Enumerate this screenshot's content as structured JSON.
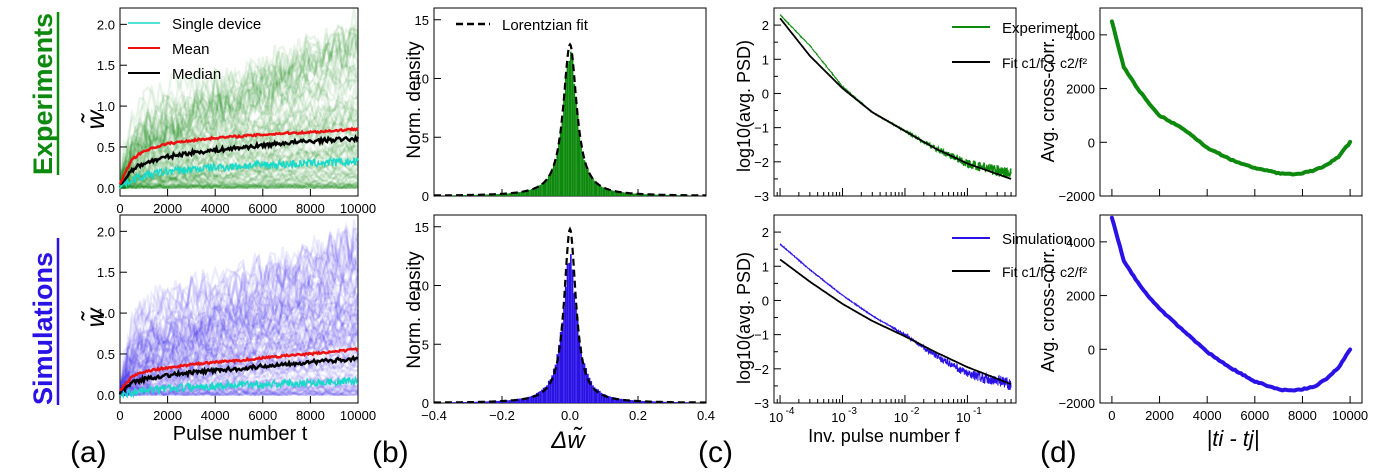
{
  "row_labels": {
    "experiments": "Experiments",
    "simulations": "Simulations"
  },
  "panel_labels": [
    "(a)",
    "(b)",
    "(c)",
    "(d)"
  ],
  "colors": {
    "exp": "#0d8a0d",
    "sim": "#2a12e6",
    "cyan": "#19d9c9",
    "red": "#ee1111",
    "black": "#000000"
  },
  "chart_data": [
    {
      "id": "a-exp",
      "type": "line",
      "xlim": [
        0,
        10000
      ],
      "ylim": [
        -0.1,
        2.2
      ],
      "yticks": [
        0.0,
        0.5,
        1.0,
        1.5,
        2.0
      ],
      "xticks": [
        0,
        2000,
        4000,
        6000,
        8000,
        10000
      ],
      "ylabel": "w̃",
      "xlabel": "",
      "legend": {
        "position": "top-left",
        "entries": [
          "Single device",
          "Mean",
          "Median"
        ]
      },
      "series": [
        {
          "name": "Mean",
          "x": [
            0,
            500,
            1000,
            1500,
            2000,
            3000,
            4000,
            5000,
            6000,
            7000,
            8000,
            9000,
            10000
          ],
          "values": [
            0.05,
            0.35,
            0.45,
            0.5,
            0.54,
            0.58,
            0.61,
            0.63,
            0.65,
            0.67,
            0.68,
            0.7,
            0.72
          ]
        },
        {
          "name": "Median",
          "x": [
            0,
            500,
            1000,
            1500,
            2000,
            3000,
            4000,
            5000,
            6000,
            7000,
            8000,
            9000,
            10000
          ],
          "values": [
            0.03,
            0.22,
            0.3,
            0.34,
            0.38,
            0.43,
            0.46,
            0.49,
            0.52,
            0.55,
            0.57,
            0.59,
            0.6
          ]
        },
        {
          "name": "Single device",
          "x": [
            0,
            500,
            1000,
            2000,
            4000,
            6000,
            8000,
            10000
          ],
          "values": [
            0.02,
            0.1,
            0.15,
            0.2,
            0.25,
            0.28,
            0.3,
            0.32
          ]
        }
      ]
    },
    {
      "id": "a-sim",
      "type": "line",
      "xlim": [
        0,
        10000
      ],
      "ylim": [
        -0.1,
        2.2
      ],
      "yticks": [
        0.0,
        0.5,
        1.0,
        1.5,
        2.0
      ],
      "xticks": [
        0,
        2000,
        4000,
        6000,
        8000,
        10000
      ],
      "ylabel": "w̃",
      "xlabel": "Pulse number t",
      "series": [
        {
          "name": "Mean",
          "x": [
            0,
            500,
            1000,
            1500,
            2000,
            3000,
            4000,
            5000,
            6000,
            7000,
            8000,
            9000,
            10000
          ],
          "values": [
            0.05,
            0.22,
            0.28,
            0.31,
            0.33,
            0.37,
            0.4,
            0.42,
            0.45,
            0.48,
            0.5,
            0.53,
            0.56
          ]
        },
        {
          "name": "Median",
          "x": [
            0,
            500,
            1000,
            1500,
            2000,
            3000,
            4000,
            5000,
            6000,
            7000,
            8000,
            9000,
            10000
          ],
          "values": [
            0.03,
            0.15,
            0.19,
            0.22,
            0.24,
            0.27,
            0.3,
            0.32,
            0.35,
            0.38,
            0.4,
            0.42,
            0.45
          ]
        },
        {
          "name": "Single device",
          "x": [
            0,
            1000,
            2000,
            4000,
            6000,
            8000,
            10000
          ],
          "values": [
            0.01,
            0.05,
            0.08,
            0.11,
            0.13,
            0.15,
            0.17
          ]
        }
      ]
    },
    {
      "id": "b-exp",
      "type": "area",
      "xlim": [
        -0.4,
        0.4
      ],
      "ylim": [
        0,
        16
      ],
      "yticks": [
        0,
        5,
        10,
        15
      ],
      "xticks": [],
      "ylabel": "Norm. density",
      "xlabel": "",
      "legend": {
        "position": "top",
        "entries": [
          "Lorentzian fit"
        ]
      },
      "peak": 12.3,
      "fit_peak": 12.9,
      "width": 0.025,
      "fit_width": 0.024
    },
    {
      "id": "b-sim",
      "type": "area",
      "xlim": [
        -0.4,
        0.4
      ],
      "ylim": [
        0,
        16
      ],
      "yticks": [
        0,
        5,
        10,
        15
      ],
      "xticks": [
        -0.4,
        -0.2,
        0.0,
        0.2,
        0.4
      ],
      "ylabel": "Norm. density",
      "xlabel": "Δw̃",
      "peak": 12.2,
      "fit_peak": 14.8,
      "width": 0.026,
      "fit_width": 0.021
    },
    {
      "id": "c-exp",
      "type": "line",
      "xscale": "log",
      "xlim": [
        8e-05,
        0.6
      ],
      "ylim": [
        -3,
        2.5
      ],
      "yticks": [
        -3,
        -2.5,
        -2,
        -1.5,
        -1,
        -0.5,
        0,
        0.5,
        1,
        1.5,
        2
      ],
      "xticks": [],
      "ylabel": "log10(avg. PSD)",
      "xlabel": "",
      "legend": {
        "position": "top-right",
        "entries": [
          "Experiment",
          "Fit c1/f + c2/f²"
        ]
      },
      "series": [
        {
          "name": "Experiment",
          "x": [
            0.0001,
            0.0003,
            0.001,
            0.003,
            0.01,
            0.03,
            0.1,
            0.5
          ],
          "values": [
            2.3,
            1.4,
            0.2,
            -0.55,
            -1.1,
            -1.6,
            -2.05,
            -2.35
          ]
        },
        {
          "name": "Fit",
          "x": [
            0.0001,
            0.0003,
            0.001,
            0.003,
            0.01,
            0.03,
            0.1,
            0.5
          ],
          "values": [
            2.2,
            1.1,
            0.15,
            -0.55,
            -1.1,
            -1.6,
            -2.05,
            -2.5
          ]
        }
      ]
    },
    {
      "id": "c-sim",
      "type": "line",
      "xscale": "log",
      "xlim": [
        8e-05,
        0.6
      ],
      "ylim": [
        -3,
        2.5
      ],
      "yticks": [
        -3,
        -2.5,
        -2,
        -1.5,
        -1,
        -0.5,
        0,
        0.5,
        1,
        1.5,
        2
      ],
      "xticks": [
        0.0001,
        0.001,
        0.01,
        0.1
      ],
      "ylabel": "log10(avg. PSD)",
      "xlabel": "Inv. pulse number f",
      "legend": {
        "position": "top-right",
        "entries": [
          "Simulation",
          "Fit c1/f + c2/f²"
        ]
      },
      "series": [
        {
          "name": "Simulation",
          "x": [
            0.0001,
            0.0003,
            0.001,
            0.003,
            0.01,
            0.03,
            0.1,
            0.5
          ],
          "values": [
            1.65,
            0.9,
            0.15,
            -0.45,
            -1.0,
            -1.6,
            -2.15,
            -2.45
          ]
        },
        {
          "name": "Fit",
          "x": [
            0.0001,
            0.0003,
            0.001,
            0.003,
            0.01,
            0.03,
            0.1,
            0.5
          ],
          "values": [
            1.2,
            0.55,
            -0.1,
            -0.6,
            -1.05,
            -1.5,
            -1.95,
            -2.45
          ]
        }
      ]
    },
    {
      "id": "d-exp",
      "type": "line",
      "xlim": [
        -500,
        10500
      ],
      "ylim": [
        -2000,
        5000
      ],
      "yticks": [
        -2000,
        0,
        2000,
        4000
      ],
      "xticks": [],
      "ylabel": "Avg. cross-corr.",
      "xlabel": "",
      "series": [
        {
          "name": "Experiment",
          "x": [
            0,
            500,
            1000,
            1500,
            2000,
            3000,
            4000,
            5000,
            6000,
            7000,
            7700,
            8500,
            9000,
            9500,
            10000
          ],
          "values": [
            4500,
            2800,
            2100,
            1500,
            1000,
            500,
            -200,
            -650,
            -950,
            -1150,
            -1200,
            -1050,
            -850,
            -550,
            0
          ]
        }
      ]
    },
    {
      "id": "d-sim",
      "type": "line",
      "xlim": [
        -500,
        10500
      ],
      "ylim": [
        -2000,
        5000
      ],
      "yticks": [
        -2000,
        0,
        2000,
        4000
      ],
      "xticks": [
        0,
        2000,
        4000,
        6000,
        8000,
        10000
      ],
      "ylabel": "Avg. cross-corr.",
      "xlabel": "|ti - tj|",
      "series": [
        {
          "name": "Simulation",
          "x": [
            0,
            500,
            1000,
            1500,
            2000,
            3000,
            4000,
            5000,
            6000,
            7000,
            7600,
            8500,
            9000,
            9500,
            10000
          ],
          "values": [
            4900,
            3300,
            2600,
            2000,
            1500,
            700,
            -100,
            -700,
            -1200,
            -1500,
            -1550,
            -1400,
            -1100,
            -700,
            0
          ]
        }
      ]
    }
  ]
}
